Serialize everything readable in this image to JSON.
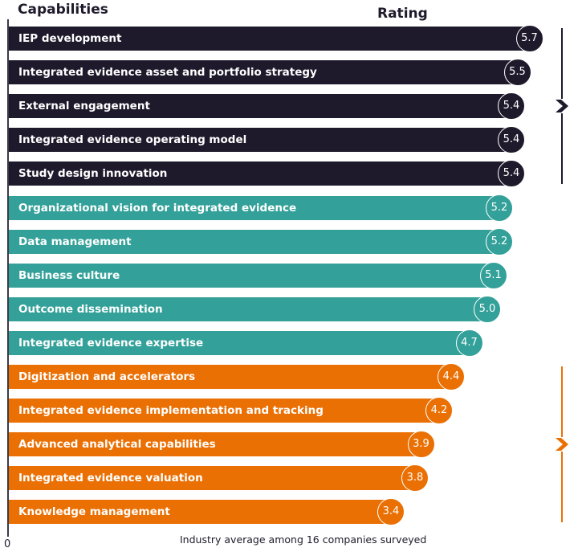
{
  "chart_data": {
    "type": "bar",
    "orientation": "horizontal",
    "title_left": "Capabilities",
    "title_right": "Rating",
    "footnote": "Industry average among 16 companies surveyed",
    "x_tick_labels": [
      "0"
    ],
    "categories": [
      "IEP development",
      "Integrated evidence asset and portfolio strategy",
      "External engagement",
      "Integrated evidence operating model",
      "Study design innovation",
      "Organizational vision for integrated evidence",
      "Data management",
      "Business culture",
      "Outcome dissemination",
      "Integrated evidence expertise",
      "Digitization and accelerators",
      "Integrated evidence implementation and tracking",
      "Advanced analytical capabilities",
      "Integrated evidence valuation",
      "Knowledge management"
    ],
    "values": [
      5.7,
      5.5,
      5.4,
      5.4,
      5.4,
      5.2,
      5.2,
      5.1,
      5.0,
      4.7,
      4.4,
      4.2,
      3.9,
      3.8,
      3.4
    ],
    "value_labels": [
      "5.7",
      "5.5",
      "5.4",
      "5.4",
      "5.4",
      "5.2",
      "5.2",
      "5.1",
      "5.0",
      "4.7",
      "4.4",
      "4.2",
      "3.9",
      "3.8",
      "3.4"
    ],
    "groups": [
      {
        "name": "top",
        "color": "#1e1a2b",
        "start": 0,
        "end": 4
      },
      {
        "name": "middle",
        "color": "#33a199",
        "start": 5,
        "end": 9
      },
      {
        "name": "bottom",
        "color": "#ea7004",
        "start": 10,
        "end": 14
      }
    ],
    "brackets": [
      {
        "group": "top",
        "color": "#1e1a2b",
        "icon": "chevron-right-icon"
      },
      {
        "group": "bottom",
        "color": "#ea7004",
        "icon": "chevron-right-icon"
      }
    ]
  }
}
